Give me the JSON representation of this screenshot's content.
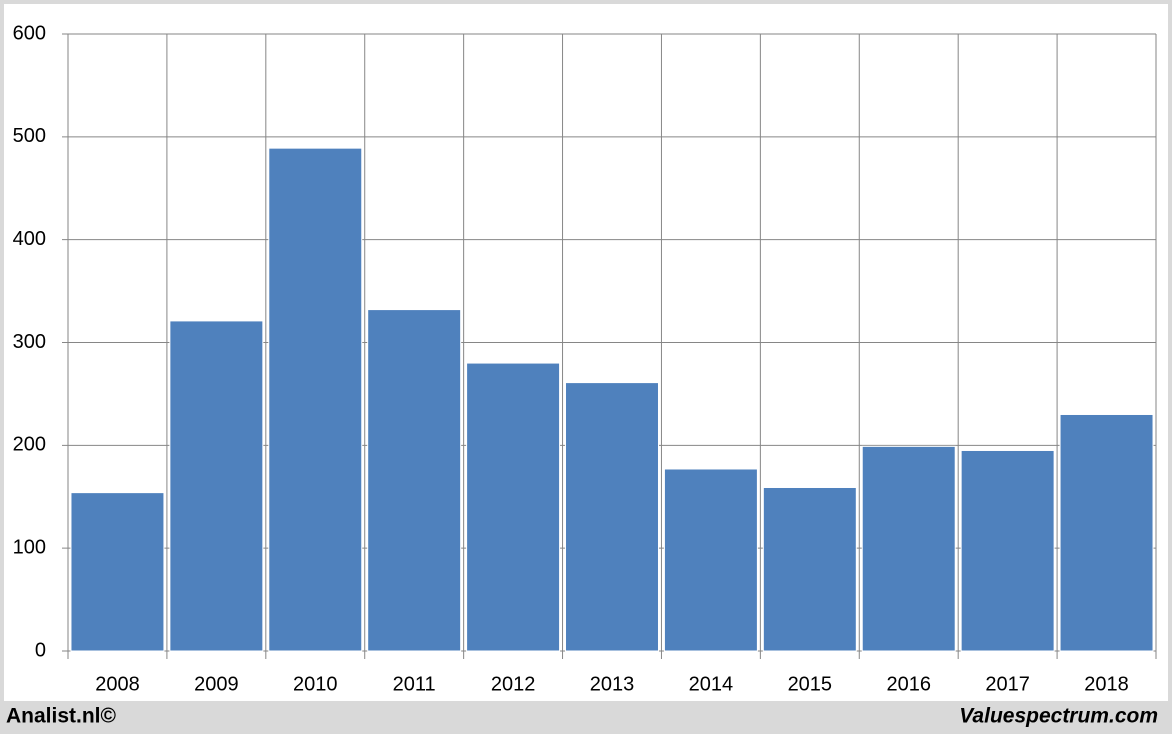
{
  "chart_data": {
    "type": "bar",
    "categories": [
      "2008",
      "2009",
      "2010",
      "2011",
      "2012",
      "2013",
      "2014",
      "2015",
      "2016",
      "2017",
      "2018"
    ],
    "values": [
      154,
      321,
      489,
      332,
      280,
      261,
      177,
      159,
      199,
      195,
      230
    ],
    "color": "#4f81bd",
    "ylim": [
      0,
      600
    ],
    "yticks": [
      0,
      100,
      200,
      300,
      400,
      500,
      600
    ],
    "grid": true,
    "footer": {
      "left": "Analist.nl©",
      "right": "Valuespectrum.com"
    }
  }
}
